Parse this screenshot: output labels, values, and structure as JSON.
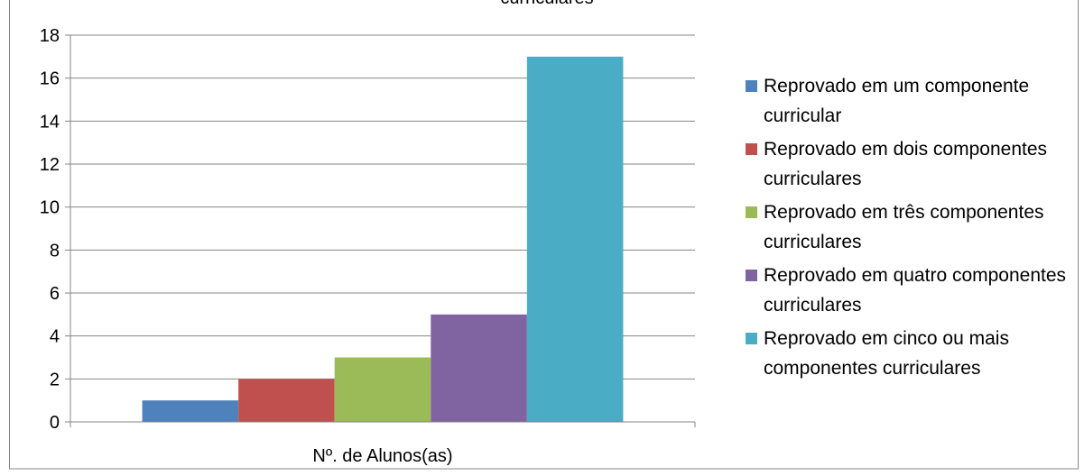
{
  "chart_data": {
    "type": "bar",
    "title": "curriculares",
    "categories": [
      "Nº. de Alunos(as)"
    ],
    "series": [
      {
        "name": "Reprovado em um componente curricular",
        "color": "#4f81bd",
        "values": [
          1
        ]
      },
      {
        "name": "Reprovado em dois componentes curriculares",
        "color": "#c0504d",
        "values": [
          2
        ]
      },
      {
        "name": "Reprovado em três componentes curriculares",
        "color": "#9bbb59",
        "values": [
          3
        ]
      },
      {
        "name": "Reprovado em quatro componentes curriculares",
        "color": "#8064a2",
        "values": [
          5
        ]
      },
      {
        "name": "Reprovado em cinco ou mais componentes curriculares",
        "color": "#4bacc6",
        "values": [
          17
        ]
      }
    ],
    "ylim": [
      0,
      18
    ],
    "yticks": [
      0,
      2,
      4,
      6,
      8,
      10,
      12,
      14,
      16,
      18
    ],
    "grid": true,
    "legend": "right"
  }
}
